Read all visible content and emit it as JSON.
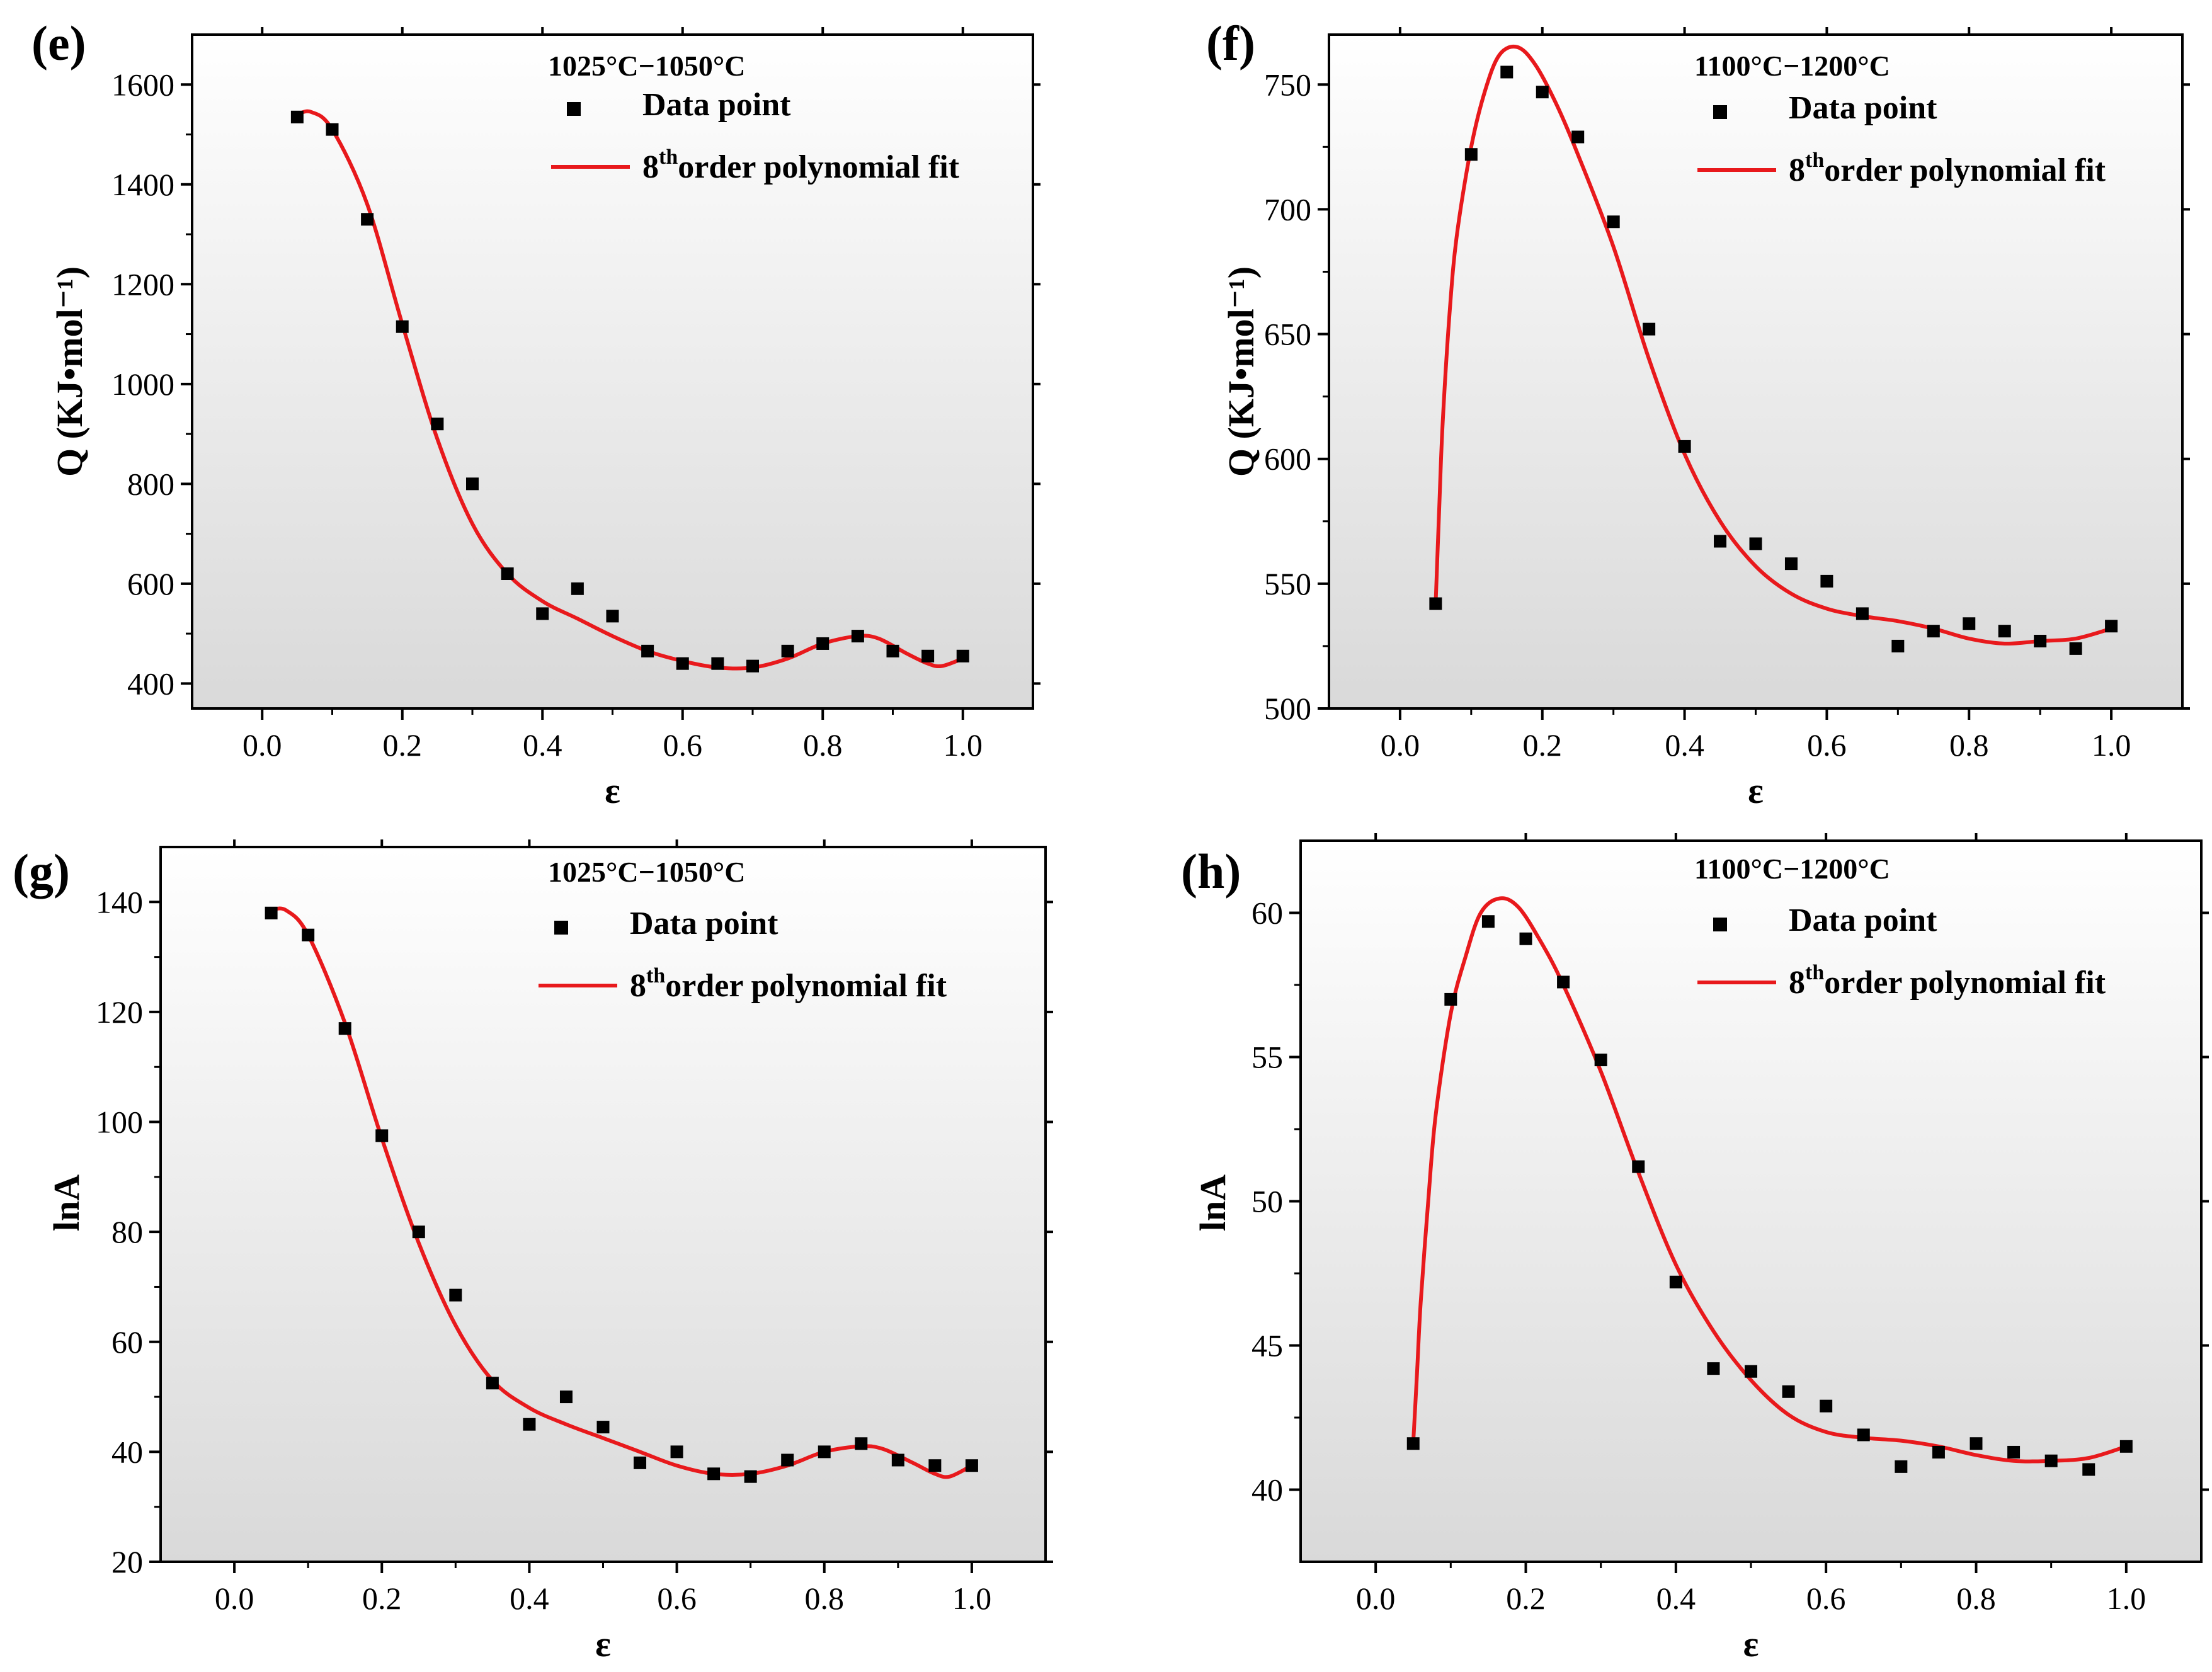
{
  "chart_data": [
    {
      "panel": "(e)",
      "type": "scatter",
      "title": "1025°C−1050°C",
      "xlabel": "ε",
      "ylabel": "Q (KJ•mol⁻¹)",
      "xlim": [
        -0.1,
        1.1
      ],
      "ylim": [
        350,
        1700
      ],
      "xticks": [
        0.0,
        0.2,
        0.4,
        0.6,
        0.8,
        1.0
      ],
      "xtick_labels": [
        "0.0",
        "0.2",
        "0.4",
        "0.6",
        "0.8",
        "1.0"
      ],
      "yticks": [
        400,
        600,
        800,
        1000,
        1200,
        1400,
        1600
      ],
      "ytick_labels": [
        "400",
        "600",
        "800",
        "1000",
        "1200",
        "1400",
        "1600"
      ],
      "legend": {
        "points": "Data point",
        "fit_sup": "th",
        "fit_prefix": "8",
        "fit_suffix": "order polynomial fit",
        "position": "top-right"
      },
      "series": [
        {
          "name": "Data point",
          "kind": "points",
          "x": [
            0.05,
            0.1,
            0.15,
            0.2,
            0.25,
            0.3,
            0.35,
            0.4,
            0.45,
            0.5,
            0.55,
            0.6,
            0.65,
            0.7,
            0.75,
            0.8,
            0.85,
            0.9,
            0.95,
            1.0
          ],
          "y": [
            1535,
            1510,
            1330,
            1115,
            920,
            800,
            620,
            540,
            590,
            535,
            465,
            440,
            440,
            435,
            465,
            480,
            495,
            465,
            455,
            455
          ]
        },
        {
          "name": "8th order polynomial fit",
          "kind": "line",
          "color": "#e8191c",
          "x": [
            0.05,
            0.07,
            0.1,
            0.15,
            0.2,
            0.25,
            0.3,
            0.35,
            0.4,
            0.45,
            0.5,
            0.55,
            0.6,
            0.65,
            0.7,
            0.75,
            0.8,
            0.85,
            0.88,
            0.92,
            0.95,
            0.97,
            1.0
          ],
          "y": [
            1540,
            1545,
            1510,
            1360,
            1120,
            890,
            720,
            620,
            565,
            530,
            495,
            465,
            445,
            432,
            432,
            450,
            480,
            495,
            490,
            460,
            440,
            435,
            450
          ]
        }
      ]
    },
    {
      "panel": "(f)",
      "type": "scatter",
      "title": "1100°C−1200°C",
      "xlabel": "ε",
      "ylabel": "Q (KJ•mol⁻¹)",
      "xlim": [
        -0.1,
        1.1
      ],
      "ylim": [
        500,
        770
      ],
      "xticks": [
        0.0,
        0.2,
        0.4,
        0.6,
        0.8,
        1.0
      ],
      "xtick_labels": [
        "0.0",
        "0.2",
        "0.4",
        "0.6",
        "0.8",
        "1.0"
      ],
      "yticks": [
        500,
        550,
        600,
        650,
        700,
        750
      ],
      "ytick_labels": [
        "500",
        "550",
        "600",
        "650",
        "700",
        "750"
      ],
      "legend": {
        "points": "Data point",
        "fit_sup": "th",
        "fit_prefix": "8",
        "fit_suffix": "order polynomial fit",
        "position": "top-right"
      },
      "series": [
        {
          "name": "Data point",
          "kind": "points",
          "x": [
            0.05,
            0.1,
            0.15,
            0.2,
            0.25,
            0.3,
            0.35,
            0.4,
            0.45,
            0.5,
            0.55,
            0.6,
            0.65,
            0.7,
            0.75,
            0.8,
            0.85,
            0.9,
            0.95,
            1.0
          ],
          "y": [
            542,
            722,
            755,
            747,
            729,
            695,
            652,
            605,
            567,
            566,
            558,
            551,
            538,
            525,
            531,
            534,
            531,
            527,
            524,
            533
          ]
        },
        {
          "name": "8th order polynomial fit",
          "kind": "line",
          "color": "#e8191c",
          "x": [
            0.05,
            0.055,
            0.06,
            0.07,
            0.08,
            0.1,
            0.12,
            0.14,
            0.165,
            0.19,
            0.22,
            0.25,
            0.3,
            0.35,
            0.4,
            0.45,
            0.5,
            0.55,
            0.6,
            0.65,
            0.7,
            0.75,
            0.8,
            0.85,
            0.9,
            0.95,
            1.0
          ],
          "y": [
            542,
            580,
            615,
            660,
            690,
            725,
            748,
            762,
            765,
            758,
            742,
            722,
            685,
            640,
            602,
            575,
            557,
            546,
            540,
            537,
            535,
            532,
            528,
            526,
            527,
            528,
            532
          ]
        }
      ]
    },
    {
      "panel": "(g)",
      "type": "scatter",
      "title": "1025°C−1050°C",
      "xlabel": "ε",
      "ylabel": "lnA",
      "xlim": [
        -0.1,
        1.1
      ],
      "ylim": [
        20,
        150
      ],
      "xticks": [
        0.0,
        0.2,
        0.4,
        0.6,
        0.8,
        1.0
      ],
      "xtick_labels": [
        "0.0",
        "0.2",
        "0.4",
        "0.6",
        "0.8",
        "1.0"
      ],
      "yticks": [
        20,
        40,
        60,
        80,
        100,
        120,
        140
      ],
      "ytick_labels": [
        "20",
        "40",
        "60",
        "80",
        "100",
        "120",
        "140"
      ],
      "legend": {
        "points": "Data point",
        "fit_sup": "th",
        "fit_prefix": "8",
        "fit_suffix": "order polynomial fit",
        "position": "top-right"
      },
      "series": [
        {
          "name": "Data point",
          "kind": "points",
          "x": [
            0.05,
            0.1,
            0.15,
            0.2,
            0.25,
            0.3,
            0.35,
            0.4,
            0.45,
            0.5,
            0.55,
            0.6,
            0.65,
            0.7,
            0.75,
            0.8,
            0.85,
            0.9,
            0.95,
            1.0
          ],
          "y": [
            138,
            134,
            117,
            97.5,
            80,
            68.5,
            52.5,
            45,
            50,
            44.5,
            38,
            40,
            36,
            35.5,
            38.5,
            40,
            41.5,
            38.5,
            37.5,
            37.5
          ]
        },
        {
          "name": "8th order polynomial fit",
          "kind": "line",
          "color": "#e8191c",
          "x": [
            0.05,
            0.07,
            0.1,
            0.15,
            0.2,
            0.25,
            0.3,
            0.35,
            0.4,
            0.45,
            0.5,
            0.55,
            0.6,
            0.65,
            0.7,
            0.75,
            0.8,
            0.85,
            0.88,
            0.92,
            0.95,
            0.97,
            1.0
          ],
          "y": [
            138.5,
            138.5,
            134,
            118,
            97,
            78,
            63,
            53,
            48,
            45,
            42.5,
            40,
            37.5,
            36,
            36,
            37.5,
            40,
            41,
            40.5,
            38,
            36,
            35.5,
            37.5
          ]
        }
      ]
    },
    {
      "panel": "(h)",
      "type": "scatter",
      "title": "1100°C−1200°C",
      "xlabel": "ε",
      "ylabel": "lnA",
      "xlim": [
        -0.1,
        1.1
      ],
      "ylim": [
        37.5,
        62.5
      ],
      "xticks": [
        0.0,
        0.2,
        0.4,
        0.6,
        0.8,
        1.0
      ],
      "xtick_labels": [
        "0.0",
        "0.2",
        "0.4",
        "0.6",
        "0.8",
        "1.0"
      ],
      "yticks": [
        40,
        45,
        50,
        55,
        60
      ],
      "ytick_labels": [
        "40",
        "45",
        "50",
        "55",
        "60"
      ],
      "legend": {
        "points": "Data point",
        "fit_sup": "th",
        "fit_prefix": "8",
        "fit_suffix": "order polynomial fit",
        "position": "top-right"
      },
      "series": [
        {
          "name": "Data point",
          "kind": "points",
          "x": [
            0.05,
            0.1,
            0.15,
            0.2,
            0.25,
            0.3,
            0.35,
            0.4,
            0.45,
            0.5,
            0.55,
            0.6,
            0.65,
            0.7,
            0.75,
            0.8,
            0.85,
            0.9,
            0.95,
            1.0
          ],
          "y": [
            41.6,
            57,
            59.7,
            59.1,
            57.6,
            54.9,
            51.2,
            47.2,
            44.2,
            44.1,
            43.4,
            42.9,
            41.9,
            40.8,
            41.3,
            41.6,
            41.3,
            41,
            40.7,
            41.5
          ]
        },
        {
          "name": "8th order polynomial fit",
          "kind": "line",
          "color": "#e8191c",
          "x": [
            0.05,
            0.055,
            0.06,
            0.07,
            0.08,
            0.1,
            0.12,
            0.14,
            0.165,
            0.19,
            0.22,
            0.25,
            0.3,
            0.35,
            0.4,
            0.45,
            0.5,
            0.55,
            0.6,
            0.65,
            0.7,
            0.75,
            0.8,
            0.85,
            0.9,
            0.95,
            1.0
          ],
          "y": [
            41.6,
            44,
            46.5,
            50,
            53,
            56.5,
            58.5,
            60,
            60.5,
            60.2,
            59,
            57.5,
            54.5,
            51,
            47.8,
            45.5,
            43.8,
            42.6,
            42,
            41.8,
            41.7,
            41.5,
            41.2,
            41,
            41,
            41.1,
            41.5
          ]
        }
      ]
    }
  ]
}
